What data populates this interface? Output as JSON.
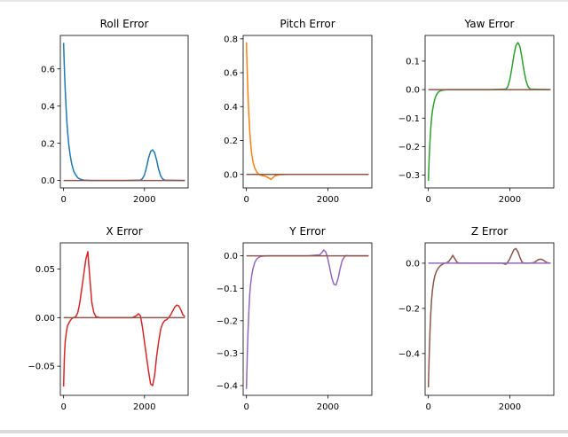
{
  "chart_data": [
    {
      "type": "line",
      "title": "Roll Error",
      "xlim": [
        -80,
        3080
      ],
      "ylim": [
        -0.04,
        0.78
      ],
      "xticks": [
        0,
        2000
      ],
      "yticks": [
        0.0,
        0.2,
        0.4,
        0.6
      ],
      "ytick_labels": [
        "0.0",
        "0.2",
        "0.4",
        "0.6"
      ],
      "series": [
        {
          "color": "#1f77b4",
          "x": [
            0,
            20,
            40,
            60,
            80,
            100,
            130,
            160,
            200,
            250,
            300,
            350,
            400,
            500,
            700,
            1000,
            1500,
            1900,
            1950,
            2000,
            2050,
            2100,
            2150,
            2200,
            2250,
            2300,
            2350,
            2400,
            2450,
            2500,
            3000
          ],
          "y": [
            0.74,
            0.6,
            0.49,
            0.4,
            0.32,
            0.26,
            0.19,
            0.14,
            0.09,
            0.05,
            0.03,
            0.015,
            0.008,
            0.002,
            0,
            0,
            0,
            0.002,
            0.01,
            0.03,
            0.07,
            0.12,
            0.155,
            0.165,
            0.15,
            0.11,
            0.06,
            0.025,
            0.008,
            0.002,
            0
          ]
        },
        {
          "color": "#8c564b",
          "x": [
            0,
            3000
          ],
          "y": [
            0,
            0
          ]
        }
      ]
    },
    {
      "type": "line",
      "title": "Pitch Error",
      "xlim": [
        -80,
        3080
      ],
      "ylim": [
        -0.08,
        0.82
      ],
      "xticks": [
        0,
        2000
      ],
      "yticks": [
        0.0,
        0.2,
        0.4,
        0.6,
        0.8
      ],
      "ytick_labels": [
        "0.0",
        "0.2",
        "0.4",
        "0.6",
        "0.8"
      ],
      "series": [
        {
          "color": "#ff7f0e",
          "x": [
            0,
            20,
            40,
            60,
            80,
            100,
            130,
            160,
            200,
            250,
            300,
            350,
            400,
            450,
            500,
            550,
            600,
            650,
            700,
            800,
            1000,
            3000
          ],
          "y": [
            0.78,
            0.6,
            0.46,
            0.35,
            0.26,
            0.19,
            0.12,
            0.075,
            0.04,
            0.015,
            0.002,
            -0.005,
            -0.008,
            -0.01,
            -0.015,
            -0.022,
            -0.03,
            -0.02,
            -0.008,
            -0.002,
            0,
            0
          ]
        },
        {
          "color": "#1f77b4",
          "x": [
            0,
            3000
          ],
          "y": [
            0,
            0
          ]
        },
        {
          "color": "#8c564b",
          "x": [
            0,
            3000
          ],
          "y": [
            0,
            0
          ]
        }
      ]
    },
    {
      "type": "line",
      "title": "Yaw Error",
      "xlim": [
        -80,
        3080
      ],
      "ylim": [
        -0.345,
        0.19
      ],
      "xticks": [
        0,
        2000
      ],
      "yticks": [
        -0.3,
        -0.2,
        -0.1,
        0.0,
        0.1
      ],
      "ytick_labels": [
        "−0.3",
        "−0.2",
        "−0.1",
        "0.0",
        "0.1"
      ],
      "series": [
        {
          "color": "#2ca02c",
          "x": [
            0,
            20,
            40,
            60,
            80,
            100,
            130,
            160,
            200,
            250,
            300,
            350,
            400,
            500,
            700,
            1000,
            1500,
            1900,
            1950,
            2000,
            2050,
            2100,
            2150,
            2200,
            2250,
            2300,
            2350,
            2400,
            2450,
            2500,
            3000
          ],
          "y": [
            -0.32,
            -0.24,
            -0.18,
            -0.135,
            -0.1,
            -0.075,
            -0.05,
            -0.032,
            -0.018,
            -0.008,
            -0.004,
            -0.002,
            -0.001,
            0,
            0,
            0,
            0,
            0.002,
            0.01,
            0.035,
            0.075,
            0.12,
            0.155,
            0.165,
            0.15,
            0.11,
            0.065,
            0.03,
            0.01,
            0.002,
            0
          ]
        },
        {
          "color": "#8c564b",
          "x": [
            0,
            3000
          ],
          "y": [
            0,
            0
          ]
        }
      ]
    },
    {
      "type": "line",
      "title": "X Error",
      "xlim": [
        -80,
        3080
      ],
      "ylim": [
        -0.08,
        0.077
      ],
      "xticks": [
        0,
        2000
      ],
      "yticks": [
        -0.05,
        0.0,
        0.05
      ],
      "ytick_labels": [
        "−0.05",
        "0.00",
        "0.05"
      ],
      "series": [
        {
          "color": "#d62728",
          "x": [
            0,
            20,
            40,
            60,
            80,
            100,
            150,
            200,
            250,
            300,
            350,
            400,
            450,
            500,
            550,
            600,
            650,
            700,
            750,
            800,
            900,
            1200,
            1500,
            1700,
            1800,
            1850,
            1900,
            1950,
            2000,
            2050,
            2100,
            2150,
            2200,
            2250,
            2300,
            2350,
            2400,
            2450,
            2500,
            2550,
            2600,
            2650,
            2700,
            2750,
            2800,
            2850,
            2900,
            2950,
            3000
          ],
          "y": [
            -0.071,
            -0.04,
            -0.025,
            -0.018,
            -0.012,
            -0.008,
            -0.004,
            -0.001,
            0,
            0.001,
            0.005,
            0.015,
            0.03,
            0.045,
            0.06,
            0.068,
            0.04,
            0.015,
            0.005,
            0.001,
            0,
            0,
            0,
            0,
            0.002,
            0.004,
            0.002,
            -0.01,
            -0.025,
            -0.04,
            -0.055,
            -0.068,
            -0.07,
            -0.06,
            -0.04,
            -0.025,
            -0.012,
            -0.006,
            -0.003,
            -0.002,
            0,
            0.003,
            0.007,
            0.011,
            0.013,
            0.012,
            0.008,
            0.003,
            0.001
          ]
        },
        {
          "color": "#8c564b",
          "x": [
            0,
            3000
          ],
          "y": [
            0,
            0
          ]
        }
      ]
    },
    {
      "type": "line",
      "title": "Y Error",
      "xlim": [
        -80,
        3080
      ],
      "ylim": [
        -0.43,
        0.04
      ],
      "xticks": [
        0,
        2000
      ],
      "yticks": [
        -0.4,
        -0.3,
        -0.2,
        -0.1,
        0.0
      ],
      "ytick_labels": [
        "−0.4",
        "−0.3",
        "−0.2",
        "−0.1",
        "0.0"
      ],
      "series": [
        {
          "color": "#9467bd",
          "x": [
            0,
            20,
            40,
            60,
            80,
            100,
            130,
            160,
            200,
            250,
            300,
            350,
            400,
            500,
            700,
            1000,
            1500,
            1800,
            1850,
            1900,
            1950,
            2000,
            2050,
            2100,
            2150,
            2200,
            2250,
            2300,
            2350,
            2400,
            2450,
            2500,
            3000
          ],
          "y": [
            -0.41,
            -0.31,
            -0.23,
            -0.17,
            -0.12,
            -0.09,
            -0.06,
            -0.04,
            -0.022,
            -0.01,
            -0.005,
            -0.002,
            -0.001,
            0,
            0,
            0,
            0,
            0.003,
            0.01,
            0.018,
            0.012,
            -0.01,
            -0.04,
            -0.07,
            -0.088,
            -0.09,
            -0.07,
            -0.04,
            -0.015,
            -0.004,
            0.001,
            0,
            0
          ]
        },
        {
          "color": "#8c564b",
          "x": [
            0,
            3000
          ],
          "y": [
            0,
            0
          ]
        }
      ]
    },
    {
      "type": "line",
      "title": "Z Error",
      "xlim": [
        -80,
        3080
      ],
      "ylim": [
        -0.585,
        0.09
      ],
      "xticks": [
        0,
        2000
      ],
      "yticks": [
        -0.4,
        -0.2,
        0.0
      ],
      "ytick_labels": [
        "−0.4",
        "−0.2",
        "0.0"
      ],
      "series": [
        {
          "color": "#8c564b",
          "x": [
            0,
            20,
            40,
            60,
            80,
            100,
            130,
            160,
            200,
            250,
            300,
            350,
            400,
            450,
            500,
            550,
            600,
            650,
            700,
            750,
            800,
            900,
            1200,
            1500,
            1800,
            1850,
            1900,
            1950,
            2000,
            2050,
            2100,
            2150,
            2200,
            2250,
            2300,
            2350,
            2400,
            2500,
            2600,
            2650,
            2700,
            2750,
            2800,
            2850,
            2900,
            2950,
            3000
          ],
          "y": [
            -0.55,
            -0.41,
            -0.3,
            -0.22,
            -0.16,
            -0.12,
            -0.08,
            -0.055,
            -0.035,
            -0.02,
            -0.01,
            -0.004,
            0,
            0.002,
            0.008,
            0.02,
            0.035,
            0.02,
            0.005,
            0,
            0,
            0,
            0,
            0,
            0,
            -0.002,
            -0.005,
            0.005,
            0.02,
            0.04,
            0.06,
            0.065,
            0.05,
            0.025,
            0.005,
            0,
            0,
            0,
            0.003,
            0.01,
            0.016,
            0.018,
            0.016,
            0.01,
            0.004,
            0.001,
            0
          ]
        },
        {
          "color": "#9467bd",
          "x": [
            0,
            3000
          ],
          "y": [
            0,
            0
          ]
        }
      ]
    }
  ]
}
